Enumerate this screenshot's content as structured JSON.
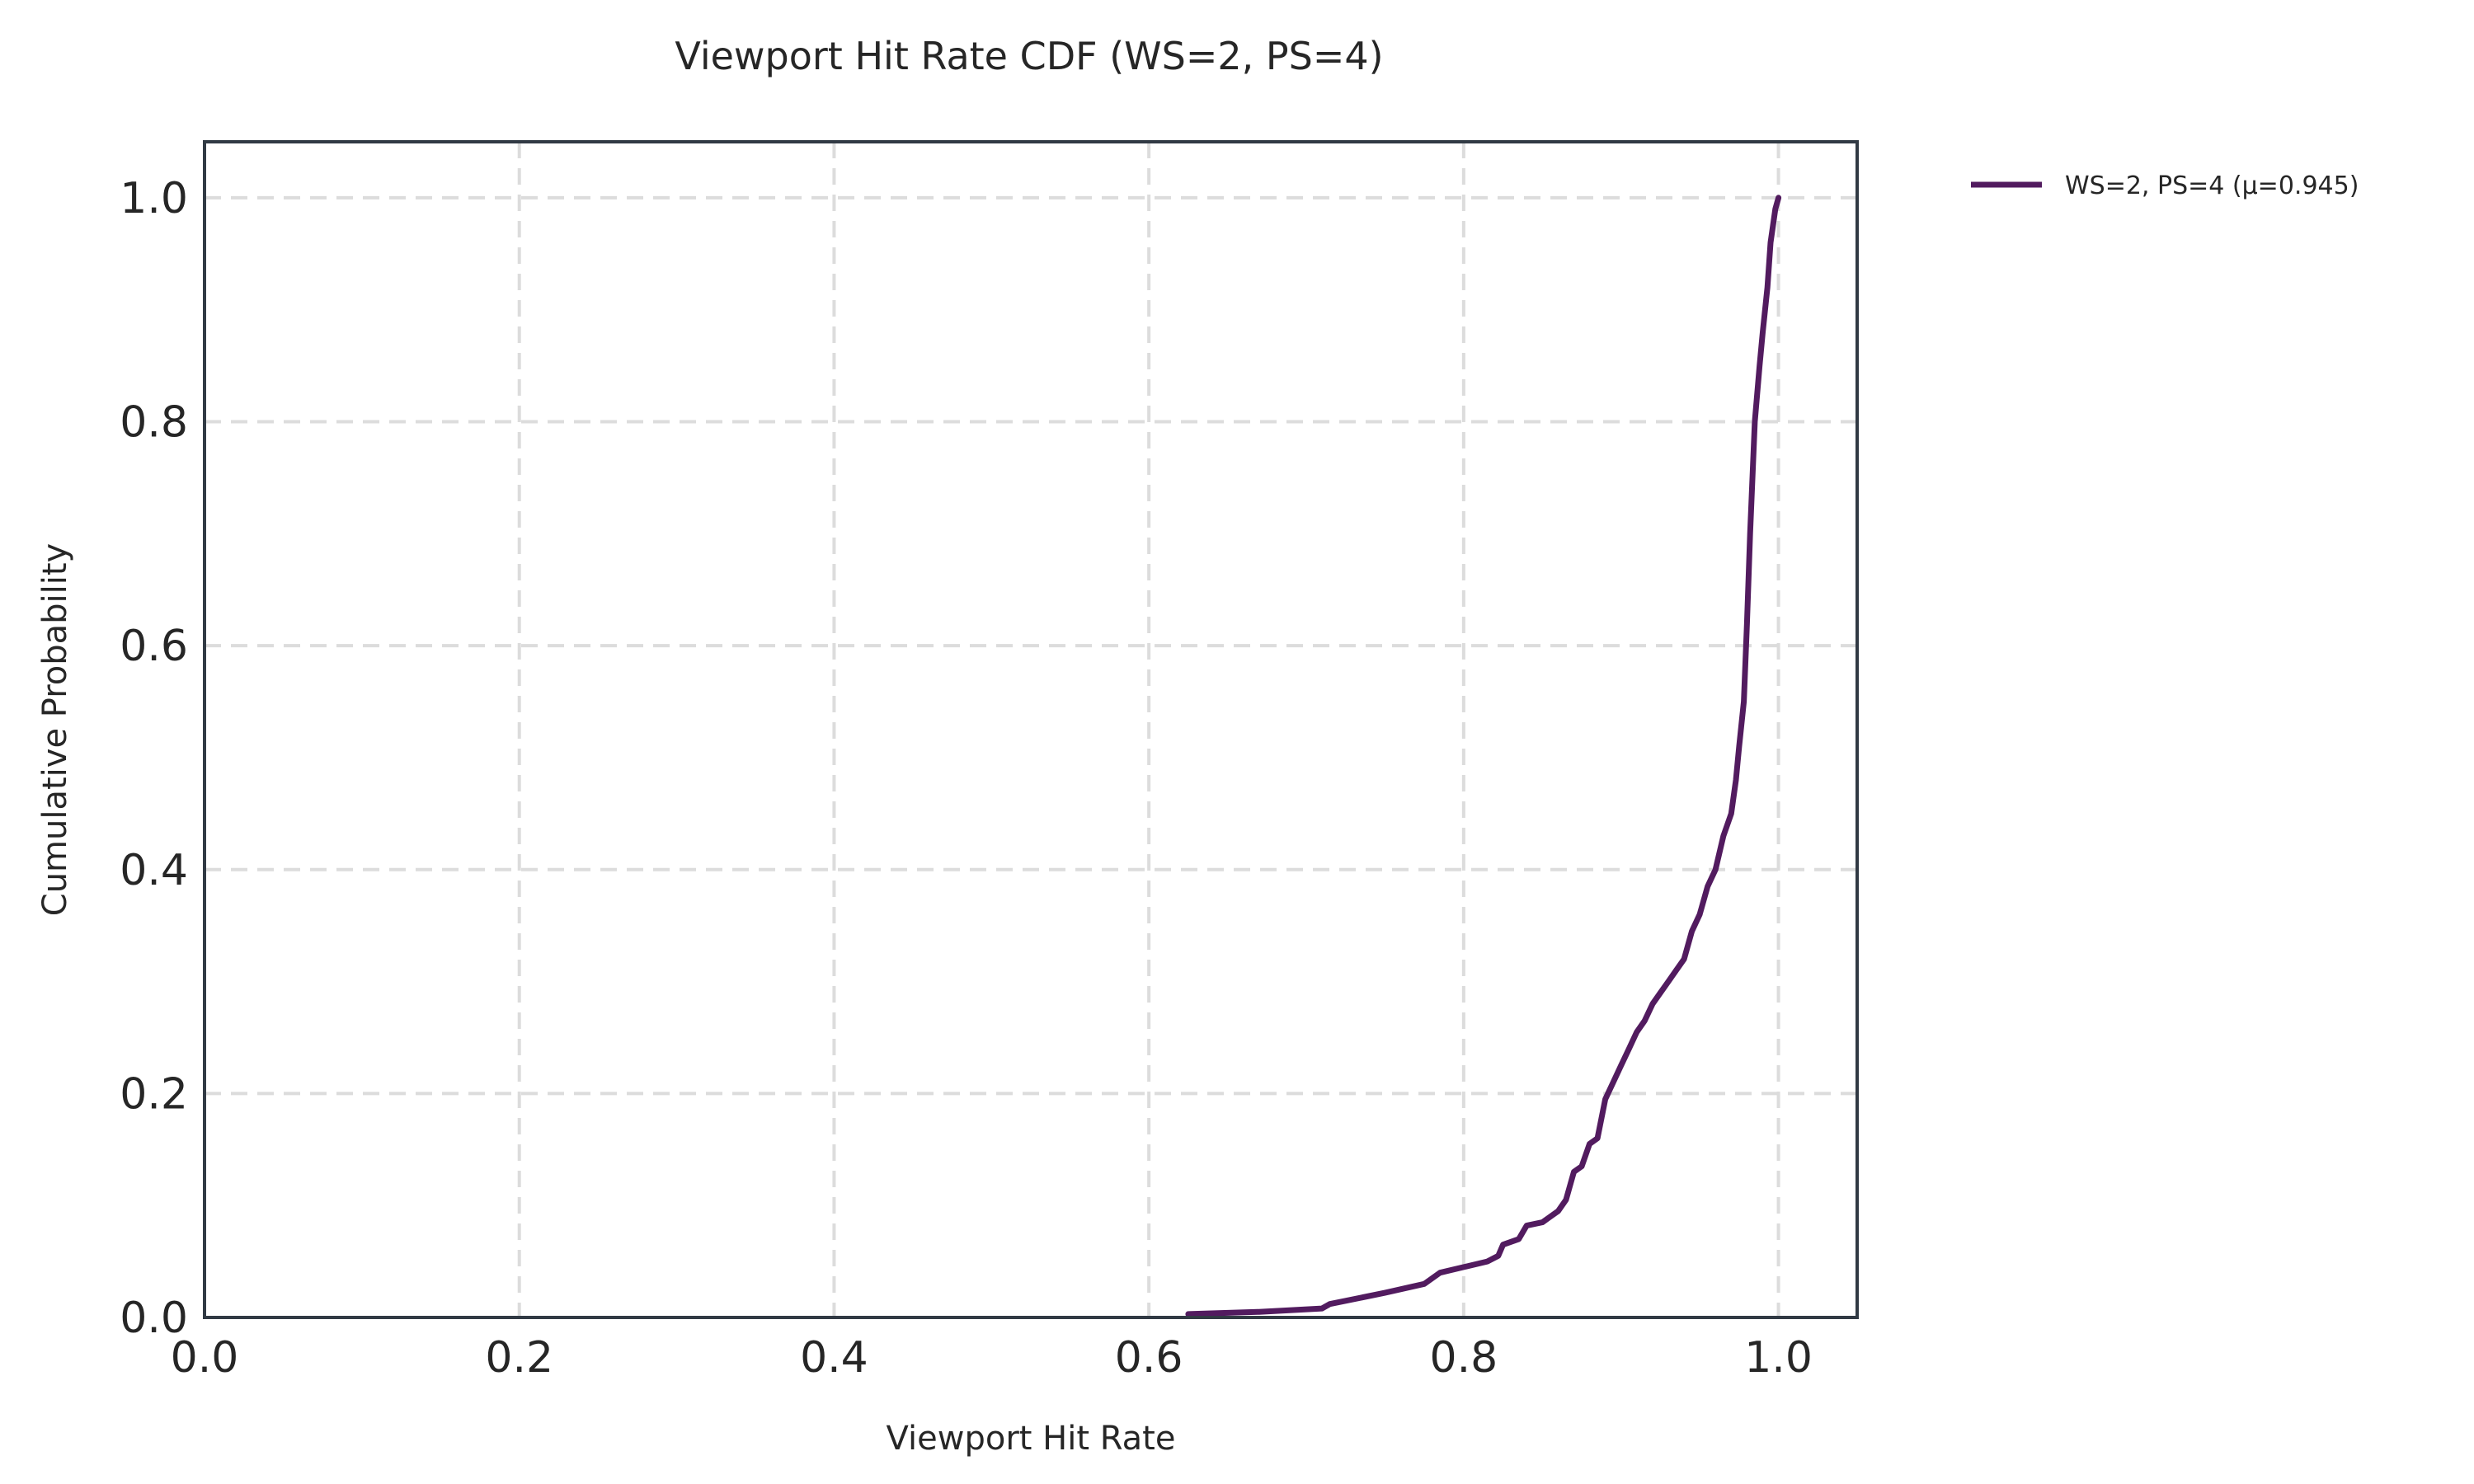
{
  "chart_data": {
    "type": "line",
    "title": "Viewport Hit Rate CDF (WS=2, PS=4)",
    "xlabel": "Viewport Hit Rate",
    "ylabel": "Cumulative Probability",
    "xlim": [
      0.0,
      1.05
    ],
    "ylim": [
      0.0,
      1.05
    ],
    "xticks": [
      0.0,
      0.2,
      0.4,
      0.6,
      0.8,
      1.0
    ],
    "xtick_labels": [
      "0.0",
      "0.2",
      "0.4",
      "0.6",
      "0.8",
      "1.0"
    ],
    "yticks": [
      0.0,
      0.2,
      0.4,
      0.6,
      0.8,
      1.0
    ],
    "ytick_labels": [
      "0.0",
      "0.2",
      "0.4",
      "0.6",
      "0.8",
      "1.0"
    ],
    "grid": true,
    "legend_position": "outside-top-right",
    "series": [
      {
        "name": "WS=2, PS=4 (μ=0.945)",
        "color": "#521b5f",
        "x": [
          0.625,
          0.67,
          0.71,
          0.715,
          0.75,
          0.775,
          0.785,
          0.8,
          0.815,
          0.822,
          0.825,
          0.835,
          0.84,
          0.85,
          0.855,
          0.86,
          0.865,
          0.87,
          0.875,
          0.88,
          0.885,
          0.89,
          0.895,
          0.9,
          0.905,
          0.91,
          0.915,
          0.92,
          0.925,
          0.93,
          0.935,
          0.94,
          0.945,
          0.95,
          0.955,
          0.96,
          0.965,
          0.97,
          0.973,
          0.975,
          0.978,
          0.98,
          0.982,
          0.985,
          0.988,
          0.99,
          0.993,
          0.995,
          0.998,
          1.0
        ],
        "y": [
          0.003,
          0.005,
          0.008,
          0.012,
          0.022,
          0.03,
          0.04,
          0.045,
          0.05,
          0.055,
          0.065,
          0.07,
          0.082,
          0.085,
          0.09,
          0.095,
          0.105,
          0.13,
          0.135,
          0.155,
          0.16,
          0.195,
          0.21,
          0.225,
          0.24,
          0.255,
          0.265,
          0.28,
          0.29,
          0.3,
          0.31,
          0.32,
          0.345,
          0.36,
          0.385,
          0.4,
          0.43,
          0.45,
          0.48,
          0.51,
          0.55,
          0.62,
          0.7,
          0.8,
          0.85,
          0.88,
          0.92,
          0.96,
          0.99,
          1.0
        ]
      }
    ]
  }
}
